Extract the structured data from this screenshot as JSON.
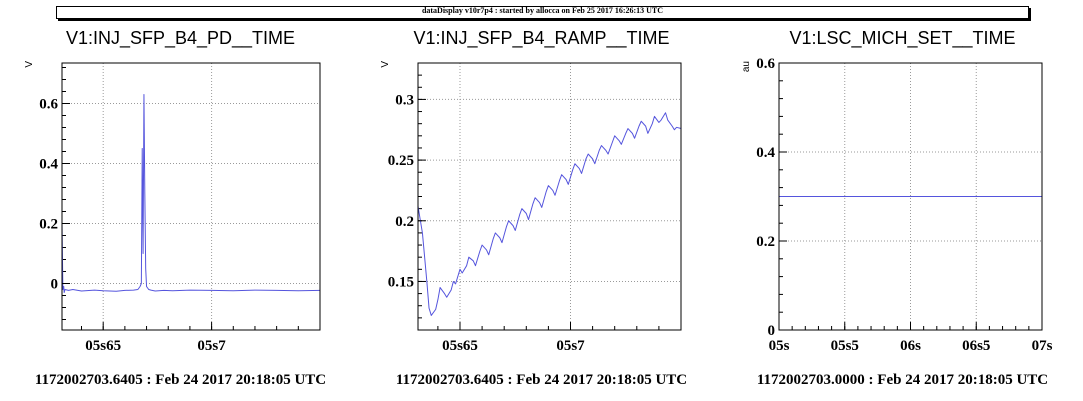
{
  "header": {
    "text": "dataDisplay v10r7p4 : started by allocca on Feb 25 2017 16:26:13 UTC"
  },
  "colors": {
    "trace": "#5555dd",
    "grid": "#9a9a9a",
    "axis": "#000000",
    "background": "#ffffff"
  },
  "chart_data": [
    {
      "type": "line",
      "title": "V1:INJ_SFP_B4_PD__TIME",
      "ylabel": "V",
      "footer": "1172002703.6405 : Feb 24 2017 20:18:05 UTC",
      "xlim": [
        0.6405,
        0.7
      ],
      "ylim": [
        -0.155,
        0.735
      ],
      "xticks": [
        {
          "v": 0.65,
          "label": "05s65"
        },
        {
          "v": 0.675,
          "label": "05s7"
        }
      ],
      "yticks": [
        {
          "v": 0,
          "label": "0"
        },
        {
          "v": 0.2,
          "label": "0.2"
        },
        {
          "v": 0.4,
          "label": "0.4"
        },
        {
          "v": 0.6,
          "label": "0.6"
        }
      ],
      "grid": true,
      "series": [
        {
          "x": [
            0.6405,
            0.6407,
            0.6409,
            0.641,
            0.6412,
            0.642,
            0.643,
            0.645,
            0.648,
            0.65,
            0.653,
            0.655,
            0.657,
            0.658,
            0.6585,
            0.6588,
            0.659,
            0.6592,
            0.6594,
            0.6596,
            0.6598,
            0.66,
            0.6605,
            0.661,
            0.662,
            0.664,
            0.666,
            0.67,
            0.675,
            0.68,
            0.685,
            0.69,
            0.695,
            0.7
          ],
          "y": [
            0.2,
            -0.02,
            -0.01,
            -0.03,
            -0.02,
            -0.023,
            -0.02,
            -0.025,
            -0.022,
            -0.024,
            -0.026,
            -0.023,
            -0.022,
            -0.02,
            -0.01,
            0.0,
            0.45,
            0.1,
            0.63,
            0.3,
            0.05,
            -0.01,
            -0.02,
            -0.022,
            -0.025,
            -0.023,
            -0.024,
            -0.022,
            -0.023,
            -0.024,
            -0.022,
            -0.023,
            -0.024,
            -0.023
          ]
        }
      ]
    },
    {
      "type": "line",
      "title": "V1:INJ_SFP_B4_RAMP__TIME",
      "ylabel": "V",
      "footer": "1172002703.6405 : Feb 24 2017 20:18:05 UTC",
      "xlim": [
        0.6405,
        0.7
      ],
      "ylim": [
        0.11,
        0.33
      ],
      "xticks": [
        {
          "v": 0.65,
          "label": "05s65"
        },
        {
          "v": 0.675,
          "label": "05s7"
        }
      ],
      "yticks": [
        {
          "v": 0.15,
          "label": "0.15"
        },
        {
          "v": 0.2,
          "label": "0.2"
        },
        {
          "v": 0.25,
          "label": "0.25"
        },
        {
          "v": 0.3,
          "label": "0.3"
        }
      ],
      "grid": true,
      "series": [
        {
          "x": [
            0.6405,
            0.6415,
            0.6425,
            0.643,
            0.6435,
            0.6445,
            0.645,
            0.6455,
            0.6465,
            0.647,
            0.648,
            0.6485,
            0.649,
            0.65,
            0.6505,
            0.6515,
            0.652,
            0.653,
            0.6535,
            0.6545,
            0.655,
            0.656,
            0.6565,
            0.6575,
            0.658,
            0.659,
            0.6595,
            0.6605,
            0.661,
            0.662,
            0.6625,
            0.6635,
            0.664,
            0.665,
            0.6655,
            0.6665,
            0.667,
            0.668,
            0.6685,
            0.6695,
            0.67,
            0.671,
            0.6715,
            0.6725,
            0.673,
            0.674,
            0.6745,
            0.6755,
            0.676,
            0.677,
            0.6775,
            0.6785,
            0.679,
            0.68,
            0.6805,
            0.6815,
            0.682,
            0.683,
            0.6835,
            0.6845,
            0.685,
            0.686,
            0.6865,
            0.6875,
            0.688,
            0.689,
            0.6895,
            0.6905,
            0.691,
            0.692,
            0.6925,
            0.6935,
            0.694,
            0.695,
            0.6955,
            0.6965,
            0.697,
            0.698,
            0.6985,
            0.699,
            0.7
          ],
          "y": [
            0.212,
            0.19,
            0.15,
            0.128,
            0.122,
            0.127,
            0.135,
            0.145,
            0.14,
            0.137,
            0.143,
            0.15,
            0.148,
            0.16,
            0.157,
            0.163,
            0.17,
            0.167,
            0.163,
            0.175,
            0.18,
            0.176,
            0.172,
            0.185,
            0.19,
            0.186,
            0.182,
            0.195,
            0.2,
            0.196,
            0.192,
            0.205,
            0.21,
            0.206,
            0.201,
            0.214,
            0.219,
            0.215,
            0.211,
            0.224,
            0.229,
            0.225,
            0.221,
            0.233,
            0.238,
            0.234,
            0.23,
            0.242,
            0.247,
            0.243,
            0.239,
            0.251,
            0.255,
            0.251,
            0.247,
            0.258,
            0.262,
            0.258,
            0.255,
            0.265,
            0.27,
            0.266,
            0.263,
            0.272,
            0.276,
            0.272,
            0.268,
            0.278,
            0.282,
            0.278,
            0.272,
            0.28,
            0.286,
            0.281,
            0.283,
            0.289,
            0.283,
            0.278,
            0.275,
            0.277,
            0.276
          ]
        }
      ]
    },
    {
      "type": "line",
      "title": "V1:LSC_MICH_SET__TIME",
      "ylabel": "au",
      "footer": "1172002703.0000 : Feb 24 2017 20:18:05 UTC",
      "xlim": [
        5,
        7
      ],
      "ylim": [
        0,
        0.6
      ],
      "xticks": [
        {
          "v": 5,
          "label": "05s"
        },
        {
          "v": 5.5,
          "label": "05s5"
        },
        {
          "v": 6,
          "label": "06s"
        },
        {
          "v": 6.5,
          "label": "06s5"
        },
        {
          "v": 7,
          "label": "07s"
        }
      ],
      "yticks": [
        {
          "v": 0,
          "label": "0"
        },
        {
          "v": 0.2,
          "label": "0.2"
        },
        {
          "v": 0.4,
          "label": "0.4"
        },
        {
          "v": 0.6,
          "label": "0.6"
        }
      ],
      "grid": true,
      "series": [
        {
          "x": [
            5,
            7
          ],
          "y": [
            0.3,
            0.3
          ]
        }
      ]
    }
  ]
}
